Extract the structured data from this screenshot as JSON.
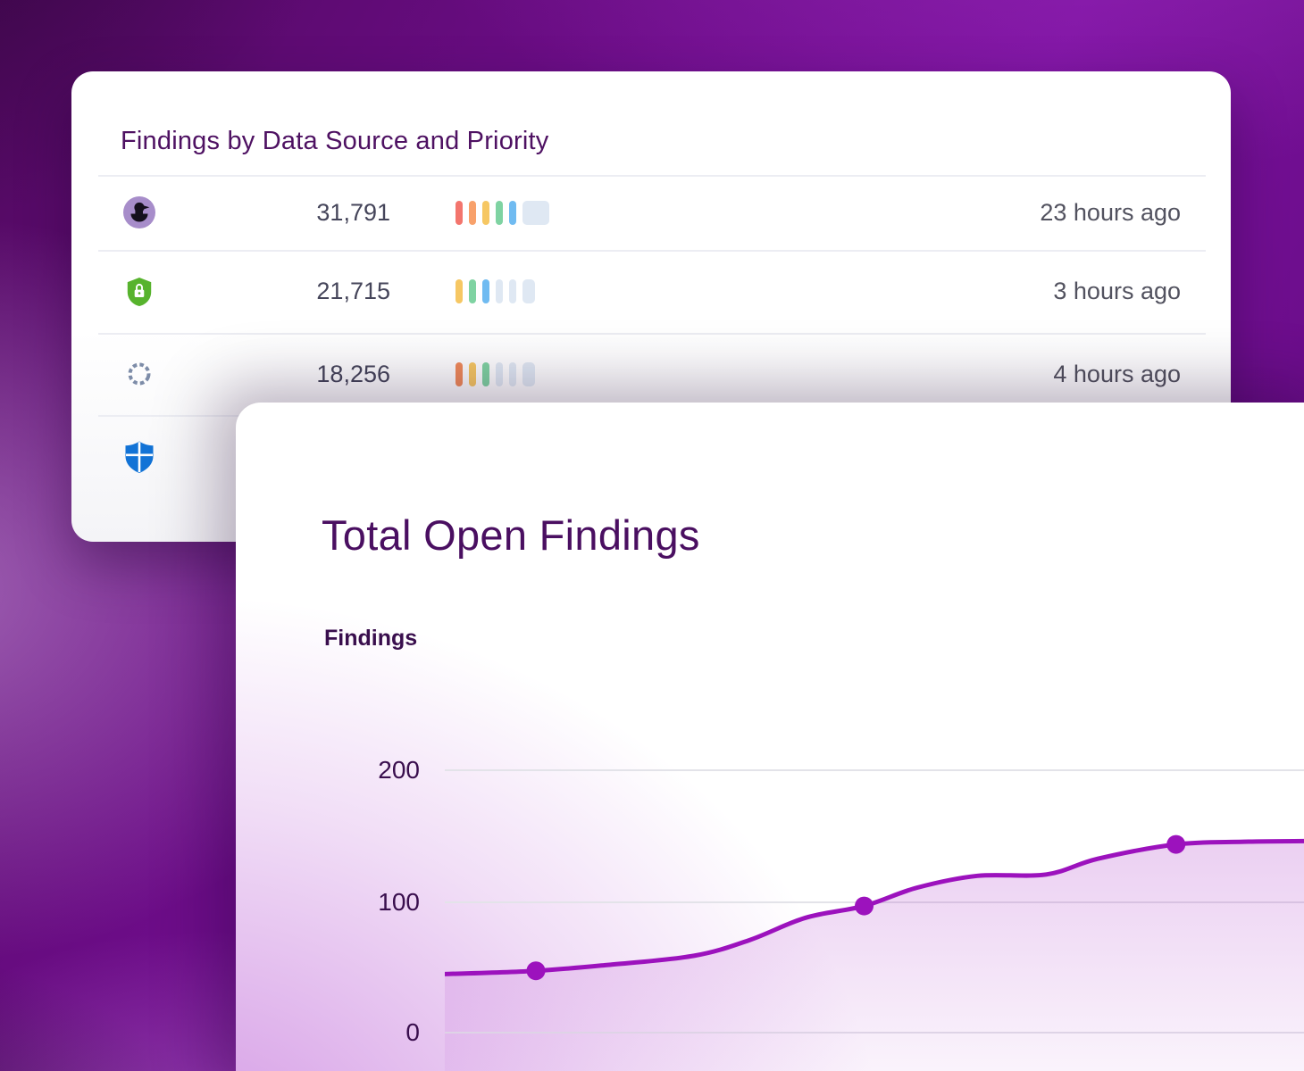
{
  "sources_card": {
    "title": "Findings by Data Source and Priority",
    "rows": [
      {
        "source": "blackduck",
        "count": "31,791",
        "updated": "23 hours ago",
        "bars": [
          {
            "color": "#f3756d",
            "width": 8
          },
          {
            "color": "#f8a16b",
            "width": 8
          },
          {
            "color": "#f6c763",
            "width": 8
          },
          {
            "color": "#7fd3a2",
            "width": 8
          },
          {
            "color": "#70bbf1",
            "width": 8
          },
          {
            "color": "#dfe8f3",
            "width": 30
          }
        ]
      },
      {
        "source": "shield-lock",
        "count": "21,715",
        "updated": "3 hours ago",
        "bars": [
          {
            "color": "#f6c763",
            "width": 8
          },
          {
            "color": "#7fd3a2",
            "width": 8
          },
          {
            "color": "#70bbf1",
            "width": 8
          },
          {
            "color": "#dfe8f3",
            "width": 8
          },
          {
            "color": "#dfe8f3",
            "width": 8
          },
          {
            "color": "#dfe8f3",
            "width": 14
          }
        ]
      },
      {
        "source": "segmented-ring",
        "count": "18,256",
        "updated": "4 hours ago",
        "bars": [
          {
            "color": "#ef8a5a",
            "width": 8
          },
          {
            "color": "#f6c763",
            "width": 8
          },
          {
            "color": "#7fd3a2",
            "width": 8
          },
          {
            "color": "#dfe8f3",
            "width": 8
          },
          {
            "color": "#dfe8f3",
            "width": 8
          },
          {
            "color": "#dfe8f3",
            "width": 14
          }
        ]
      },
      {
        "source": "defender-shield",
        "count": "",
        "updated": "",
        "bars": []
      }
    ]
  },
  "chart_card": {
    "title": "Total Open Findings",
    "axis_label": "Findings",
    "yticks": [
      "200",
      "100",
      "0"
    ]
  },
  "chart_data": {
    "type": "area",
    "title": "Total Open Findings",
    "ylabel": "Findings",
    "ylim": [
      0,
      200
    ],
    "yticks": [
      0,
      100,
      200
    ],
    "grid": true,
    "legend": false,
    "x_axis": "time (labels cropped out of view)",
    "line_color": "#9c12bd",
    "marker_color": "#9c12bd",
    "points": [
      {
        "x": 0.0,
        "v": 44
      },
      {
        "x": 0.106,
        "v": 46.5,
        "marker": true
      },
      {
        "x": 0.19,
        "v": 51
      },
      {
        "x": 0.29,
        "v": 58
      },
      {
        "x": 0.355,
        "v": 70
      },
      {
        "x": 0.42,
        "v": 87
      },
      {
        "x": 0.488,
        "v": 96,
        "marker": true
      },
      {
        "x": 0.55,
        "v": 110
      },
      {
        "x": 0.62,
        "v": 119
      },
      {
        "x": 0.7,
        "v": 120
      },
      {
        "x": 0.76,
        "v": 132
      },
      {
        "x": 0.851,
        "v": 143,
        "marker": true
      },
      {
        "x": 0.93,
        "v": 145
      },
      {
        "x": 1.0,
        "v": 145.5
      }
    ]
  }
}
